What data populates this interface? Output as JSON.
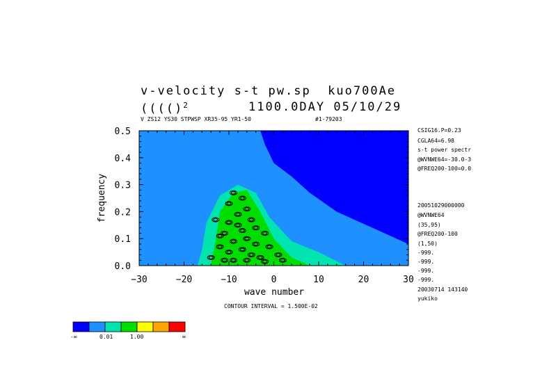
{
  "title_line1": "v-velocity s-t pw.sp  kuo700Ae",
  "title_line2_left": "(((()",
  "title_line2_sup": "2",
  "title_line2_right": "1100.0DAY 05/10/29",
  "subtitle": "V ZS12 YS30 STPWSP XR35-95 YR1-50",
  "subtitle_id": "#1-79203",
  "contour_interval": "CONTOUR INTERVAL = 1.500E-02",
  "side_labels": [
    "CSIG16.P=0.23",
    "CGLA64=6.98",
    "s-t power spectr",
    "@WVNWE64=-30.0-3",
    "@FREQ200-100=0.0",
    "20051029000000",
    "@WVNWE64",
    "(35,95)",
    "@FREQ200-100",
    "(1,50)",
    "-999.",
    "-999.",
    "-999.",
    "-999.",
    "20030714 143140",
    "yukiko"
  ],
  "colorbar": {
    "colors": [
      "#0000ff",
      "#1e90ff",
      "#00e5b0",
      "#00dd00",
      "#ffff00",
      "#ffa500",
      "#ff0000"
    ],
    "labels": [
      "-∞",
      "0.01",
      "1.00",
      "∞"
    ]
  },
  "chart_data": {
    "type": "heatmap",
    "xlabel": "wave number",
    "ylabel": "frequency",
    "xlim": [
      -30,
      30
    ],
    "ylim": [
      0,
      0.5
    ],
    "xticks": [
      -30,
      -20,
      -10,
      0,
      10,
      20,
      30
    ],
    "yticks": [
      0.0,
      0.1,
      0.2,
      0.3,
      0.4,
      0.5
    ],
    "xtick_labels": [
      "−30",
      "−20",
      "−10",
      "0",
      "10",
      "20",
      "30"
    ],
    "ytick_labels": [
      "0.0",
      "0.1",
      "0.2",
      "0.3",
      "0.4",
      "0.5"
    ],
    "regions": [
      {
        "level": "light-blue",
        "polygon": [
          [
            -30,
            0
          ],
          [
            30,
            0
          ],
          [
            30,
            0.08
          ],
          [
            22,
            0.14
          ],
          [
            14,
            0.2
          ],
          [
            8,
            0.27
          ],
          [
            4,
            0.33
          ],
          [
            0,
            0.38
          ],
          [
            -2,
            0.45
          ],
          [
            -3,
            0.5
          ],
          [
            -30,
            0.5
          ]
        ]
      },
      {
        "level": "cyan",
        "polygon": [
          [
            -17,
            0
          ],
          [
            16,
            0
          ],
          [
            10,
            0.05
          ],
          [
            4,
            0.09
          ],
          [
            -1,
            0.18
          ],
          [
            -4,
            0.27
          ],
          [
            -8,
            0.3
          ],
          [
            -12,
            0.26
          ],
          [
            -15,
            0.16
          ],
          [
            -16,
            0.06
          ]
        ]
      },
      {
        "level": "green",
        "polygon": [
          [
            -14,
            0
          ],
          [
            8,
            0
          ],
          [
            4,
            0.03
          ],
          [
            0,
            0.1
          ],
          [
            -3,
            0.2
          ],
          [
            -6,
            0.28
          ],
          [
            -9,
            0.27
          ],
          [
            -12,
            0.2
          ],
          [
            -13,
            0.09
          ]
        ]
      }
    ],
    "contour_centers": [
      [
        -9,
        0.27
      ],
      [
        -7,
        0.25
      ],
      [
        -10,
        0.23
      ],
      [
        -6,
        0.21
      ],
      [
        -8,
        0.19
      ],
      [
        -5,
        0.17
      ],
      [
        -10,
        0.16
      ],
      [
        -4,
        0.14
      ],
      [
        -7,
        0.13
      ],
      [
        -11,
        0.12
      ],
      [
        -2,
        0.12
      ],
      [
        -6,
        0.1
      ],
      [
        -9,
        0.09
      ],
      [
        -4,
        0.08
      ],
      [
        -12,
        0.07
      ],
      [
        -1,
        0.07
      ],
      [
        -7,
        0.06
      ],
      [
        -10,
        0.05
      ],
      [
        -5,
        0.04
      ],
      [
        -3,
        0.03
      ],
      [
        -9,
        0.02
      ],
      [
        -11,
        0.02
      ],
      [
        -6,
        0.02
      ],
      [
        -2,
        0.015
      ],
      [
        1,
        0.04
      ],
      [
        2,
        0.02
      ],
      [
        -14,
        0.03
      ],
      [
        -12,
        0.11
      ],
      [
        -13,
        0.17
      ],
      [
        -8,
        0.15
      ]
    ]
  }
}
